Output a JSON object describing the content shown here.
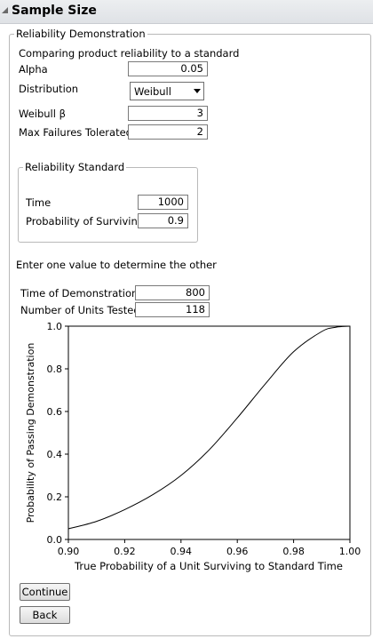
{
  "header": {
    "title": "Sample Size"
  },
  "outer_group": {
    "label": "Reliability Demonstration"
  },
  "description": "Comparing product reliability to a standard",
  "alpha": {
    "label": "Alpha",
    "value": "0.05"
  },
  "distribution": {
    "label": "Distribution",
    "selected": "Weibull"
  },
  "weibull_beta": {
    "label": "Weibull β",
    "value": "3"
  },
  "max_failures": {
    "label": "Max Failures Tolerated",
    "value": "2"
  },
  "reliability_standard": {
    "label": "Reliability Standard",
    "time": {
      "label": "Time",
      "value": "1000"
    },
    "prob_surviving": {
      "label": "Probability of Surviving",
      "value": "0.9"
    }
  },
  "instruction": "Enter one value to determine the other",
  "time_demo": {
    "label": "Time of Demonstration",
    "value": "800"
  },
  "units_tested": {
    "label": "Number of Units Tested",
    "value": "118"
  },
  "chart_data": {
    "type": "line",
    "xlabel": "True Probability of a Unit Surviving to Standard Time",
    "ylabel": "Probability of Passing Demonstration",
    "xlim": [
      0.9,
      1.0
    ],
    "ylim": [
      0.0,
      1.0
    ],
    "x_ticks": [
      "0.90",
      "0.92",
      "0.94",
      "0.96",
      "0.98",
      "1.00"
    ],
    "y_ticks": [
      "0.0",
      "0.2",
      "0.4",
      "0.6",
      "0.8",
      "1.0"
    ],
    "grid": false,
    "x": [
      0.9,
      0.91,
      0.92,
      0.93,
      0.94,
      0.95,
      0.96,
      0.97,
      0.98,
      0.99,
      0.995,
      1.0
    ],
    "y": [
      0.05,
      0.085,
      0.14,
      0.21,
      0.3,
      0.42,
      0.57,
      0.73,
      0.88,
      0.975,
      0.995,
      1.0
    ]
  },
  "buttons": {
    "continue": "Continue",
    "back": "Back"
  }
}
